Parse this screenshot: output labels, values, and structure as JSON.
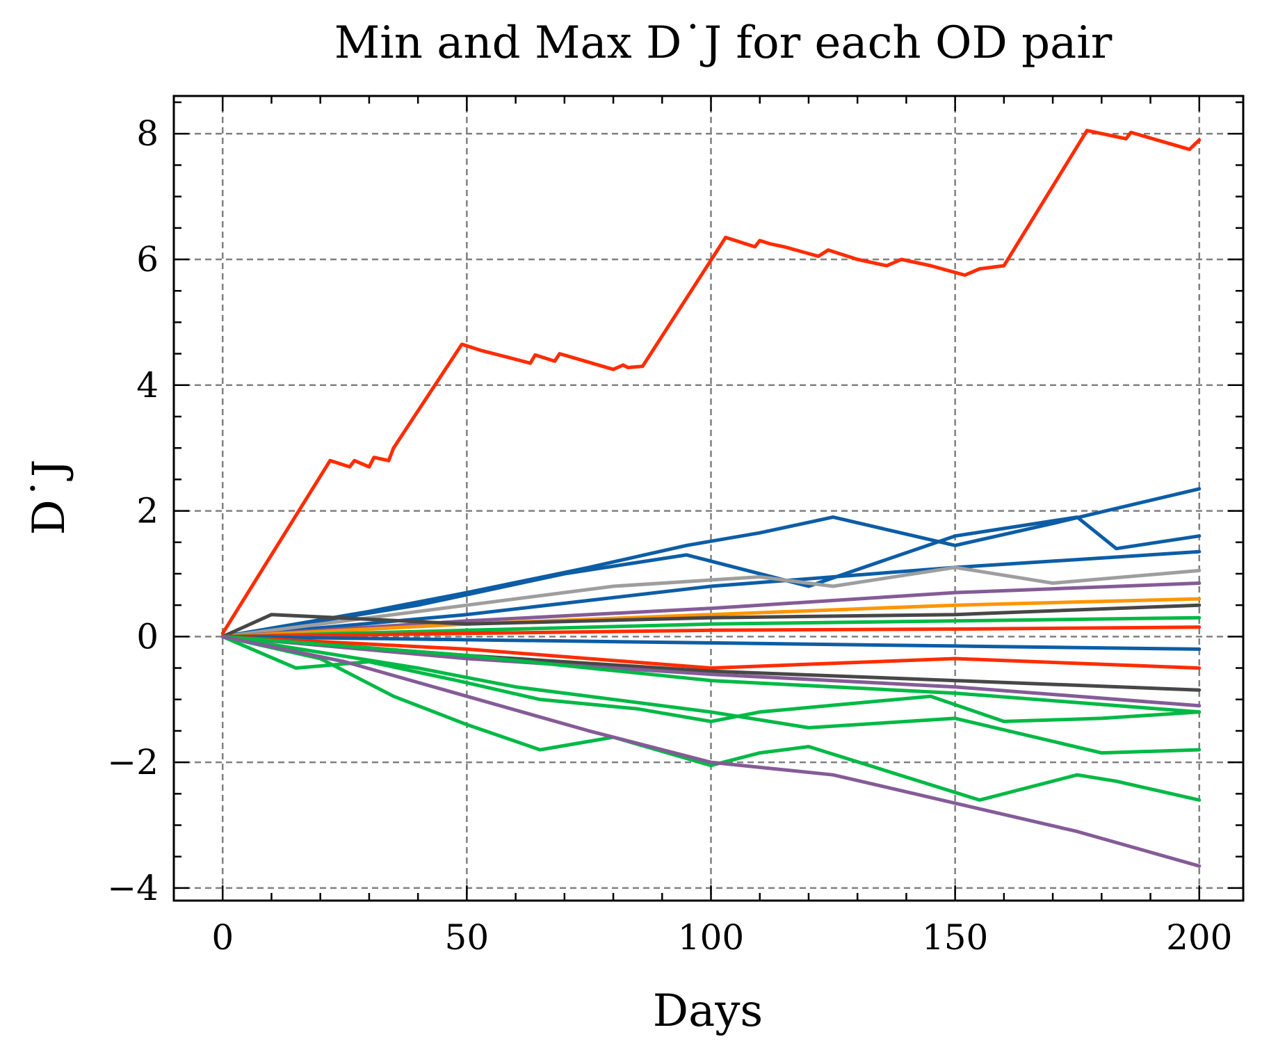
{
  "chart_data": {
    "type": "line",
    "title": "Min and Max D˙J for each OD pair",
    "xlabel": "Days",
    "ylabel": "D˙J",
    "xlim": [
      -10,
      209
    ],
    "ylim": [
      -4.2,
      8.6
    ],
    "xticks": [
      0,
      50,
      100,
      150,
      200
    ],
    "xtick_labels": [
      "0",
      "50",
      "100",
      "150",
      "200"
    ],
    "yticks": [
      -4,
      -2,
      0,
      2,
      4,
      6,
      8
    ],
    "ytick_labels": [
      "−4",
      "−2",
      "0",
      "2",
      "4",
      "6",
      "8"
    ],
    "grid": true,
    "legend": "none",
    "series": [
      {
        "color": "#FF2C00",
        "x": [
          0,
          22,
          26,
          27,
          30,
          31,
          34,
          35,
          49,
          53,
          58,
          63,
          64,
          68,
          69,
          80,
          82,
          83,
          86,
          103,
          109,
          110,
          112,
          115,
          122,
          124,
          126,
          130,
          136,
          139,
          145,
          152,
          155,
          158,
          160,
          177,
          185,
          186,
          198,
          200
        ],
        "y": [
          0.05,
          2.8,
          2.7,
          2.8,
          2.7,
          2.85,
          2.8,
          3.0,
          4.65,
          4.55,
          4.45,
          4.35,
          4.48,
          4.38,
          4.5,
          4.25,
          4.32,
          4.28,
          4.3,
          6.35,
          6.2,
          6.3,
          6.25,
          6.2,
          6.05,
          6.15,
          6.1,
          6.0,
          5.9,
          6.0,
          5.9,
          5.75,
          5.85,
          5.88,
          5.9,
          8.05,
          7.92,
          8.02,
          7.75,
          7.9
        ]
      },
      {
        "color": "#0C5DA5",
        "x": [
          0,
          30,
          50,
          75,
          95,
          110,
          125,
          150,
          170,
          200
        ],
        "y": [
          0,
          0.4,
          0.7,
          1.1,
          1.45,
          1.65,
          1.9,
          1.45,
          1.8,
          2.35
        ]
      },
      {
        "color": "#0C5DA5",
        "x": [
          0,
          40,
          70,
          95,
          120,
          150,
          175,
          183,
          200
        ],
        "y": [
          0,
          0.5,
          1.0,
          1.3,
          0.8,
          1.6,
          1.9,
          1.4,
          1.6
        ]
      },
      {
        "color": "#0C5DA5",
        "x": [
          0,
          50,
          100,
          150,
          200
        ],
        "y": [
          0,
          0.35,
          0.8,
          1.1,
          1.35
        ]
      },
      {
        "color": "#9E9E9E",
        "x": [
          0,
          50,
          80,
          110,
          125,
          150,
          170,
          200
        ],
        "y": [
          0,
          0.5,
          0.8,
          0.95,
          0.8,
          1.1,
          0.85,
          1.05
        ]
      },
      {
        "color": "#845B97",
        "x": [
          0,
          50,
          100,
          150,
          200
        ],
        "y": [
          0,
          0.25,
          0.45,
          0.7,
          0.85
        ]
      },
      {
        "color": "#FF9500",
        "x": [
          0,
          50,
          100,
          150,
          200
        ],
        "y": [
          0,
          0.2,
          0.35,
          0.5,
          0.6
        ]
      },
      {
        "color": "#474747",
        "x": [
          0,
          10,
          50,
          100,
          150,
          200
        ],
        "y": [
          0,
          0.35,
          0.2,
          0.3,
          0.35,
          0.5
        ]
      },
      {
        "color": "#00B945",
        "x": [
          0,
          50,
          100,
          150,
          200
        ],
        "y": [
          0,
          0.1,
          0.2,
          0.25,
          0.3
        ]
      },
      {
        "color": "#FF2C00",
        "x": [
          0,
          50,
          100,
          150,
          200
        ],
        "y": [
          0,
          0.05,
          0.1,
          0.12,
          0.15
        ]
      },
      {
        "color": "#0C5DA5",
        "x": [
          0,
          50,
          100,
          150,
          200
        ],
        "y": [
          0,
          -0.05,
          -0.1,
          -0.15,
          -0.2
        ]
      },
      {
        "color": "#FF2C00",
        "x": [
          0,
          50,
          100,
          150,
          200
        ],
        "y": [
          0,
          -0.2,
          -0.5,
          -0.35,
          -0.5
        ]
      },
      {
        "color": "#474747",
        "x": [
          0,
          50,
          100,
          150,
          200
        ],
        "y": [
          0,
          -0.3,
          -0.55,
          -0.7,
          -0.85
        ]
      },
      {
        "color": "#845B97",
        "x": [
          0,
          50,
          100,
          150,
          200
        ],
        "y": [
          0,
          -0.35,
          -0.6,
          -0.8,
          -1.1
        ]
      },
      {
        "color": "#00B945",
        "x": [
          0,
          50,
          100,
          150,
          200
        ],
        "y": [
          0,
          -0.3,
          -0.7,
          -0.9,
          -1.2
        ]
      },
      {
        "color": "#00B945",
        "x": [
          0,
          15,
          30,
          48,
          65,
          85,
          100,
          110,
          145,
          160,
          180,
          200
        ],
        "y": [
          0,
          -0.5,
          -0.4,
          -0.7,
          -1.0,
          -1.15,
          -1.35,
          -1.2,
          -0.95,
          -1.35,
          -1.3,
          -1.2
        ]
      },
      {
        "color": "#00B945",
        "x": [
          0,
          20,
          35,
          50,
          65,
          80,
          100,
          110,
          120,
          155,
          175,
          183,
          200
        ],
        "y": [
          0,
          -0.35,
          -0.95,
          -1.4,
          -1.8,
          -1.6,
          -2.05,
          -1.85,
          -1.75,
          -2.6,
          -2.2,
          -2.3,
          -2.6
        ]
      },
      {
        "color": "#00B945",
        "x": [
          0,
          40,
          60,
          100,
          120,
          150,
          180,
          200
        ],
        "y": [
          0,
          -0.5,
          -0.8,
          -1.2,
          -1.45,
          -1.3,
          -1.85,
          -1.8
        ]
      },
      {
        "color": "#845B97",
        "x": [
          0,
          25,
          50,
          75,
          100,
          125,
          150,
          175,
          200
        ],
        "y": [
          0,
          -0.4,
          -0.95,
          -1.5,
          -2.0,
          -2.2,
          -2.65,
          -3.1,
          -3.65
        ]
      }
    ]
  }
}
